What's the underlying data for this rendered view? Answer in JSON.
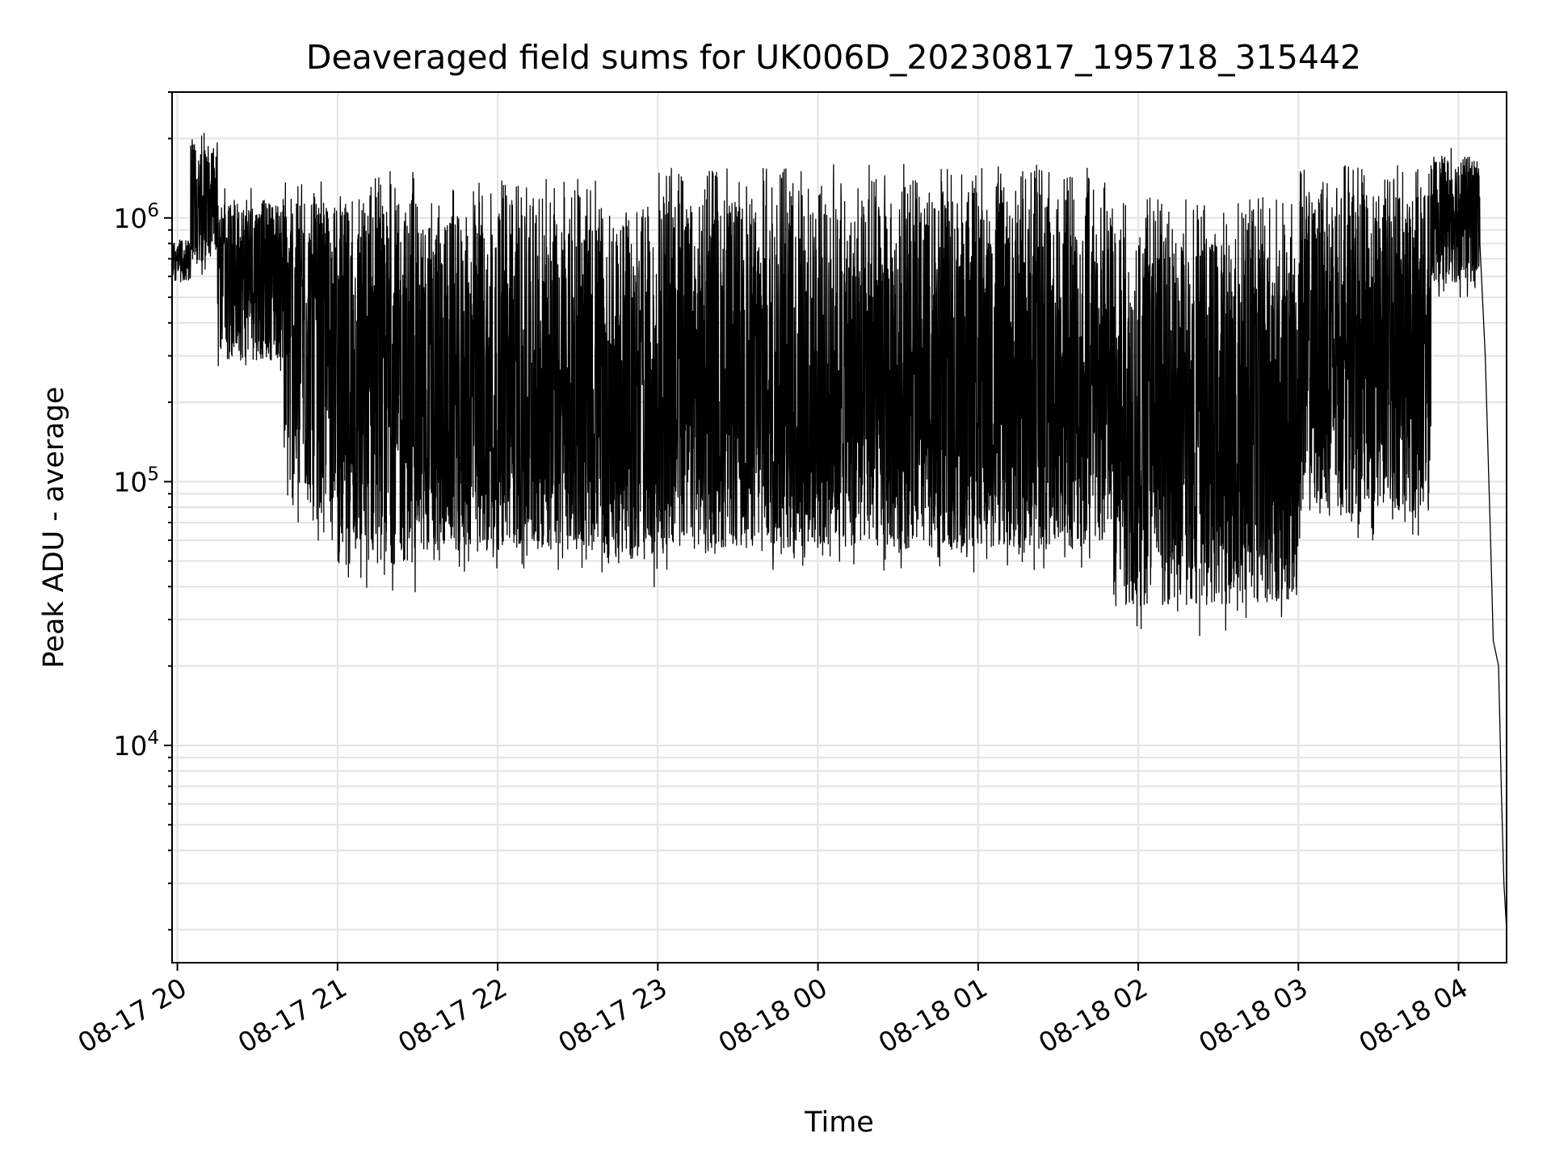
{
  "chart_data": {
    "type": "line",
    "title": "Deaveraged field sums for UK006D_20230817_195718_315442",
    "xlabel": "Time",
    "ylabel": "Peak ADU - average",
    "yscale": "log",
    "xlim": [
      "08-17 19:58",
      "08-18 04:18"
    ],
    "ylim": [
      1500,
      3000000
    ],
    "grid": true,
    "x_ticks": [
      "08-17 20",
      "08-17 21",
      "08-17 22",
      "08-17 23",
      "08-18 00",
      "08-18 01",
      "08-18 02",
      "08-18 03",
      "08-18 04"
    ],
    "y_ticks": [
      {
        "base": "10",
        "exp": "4",
        "value": 10000
      },
      {
        "base": "10",
        "exp": "5",
        "value": 100000
      },
      {
        "base": "10",
        "exp": "6",
        "value": 1000000
      }
    ],
    "series": [
      {
        "name": "",
        "color": "#000000",
        "envelope_segments": [
          {
            "start": "08-17 19:58",
            "end": "08-17 20:05",
            "low": 550000,
            "high": 850000,
            "typical": 700000
          },
          {
            "start": "08-17 20:05",
            "end": "08-17 20:15",
            "low": 600000,
            "high": 2100000,
            "typical": 1200000
          },
          {
            "start": "08-17 20:15",
            "end": "08-17 20:40",
            "low": 250000,
            "high": 1300000,
            "typical": 650000
          },
          {
            "start": "08-17 20:40",
            "end": "08-17 21:00",
            "low": 60000,
            "high": 1400000,
            "typical": 350000
          },
          {
            "start": "08-17 21:00",
            "end": "08-17 21:30",
            "low": 38000,
            "high": 1550000,
            "typical": 200000
          },
          {
            "start": "08-17 21:30",
            "end": "08-17 22:40",
            "low": 45000,
            "high": 1400000,
            "typical": 170000
          },
          {
            "start": "08-17 22:40",
            "end": "08-17 23:00",
            "low": 40000,
            "high": 1100000,
            "typical": 150000
          },
          {
            "start": "08-17 23:00",
            "end": "08-18 01:50",
            "low": 45000,
            "high": 1600000,
            "typical": 180000
          },
          {
            "start": "08-18 01:50",
            "end": "08-18 03:00",
            "low": 27000,
            "high": 1200000,
            "typical": 130000
          },
          {
            "start": "08-18 03:00",
            "end": "08-18 03:50",
            "low": 60000,
            "high": 1600000,
            "typical": 280000
          },
          {
            "start": "08-18 03:50",
            "end": "08-18 04:08",
            "low": 500000,
            "high": 1850000,
            "typical": 1100000
          }
        ],
        "tail": [
          {
            "x": "08-18 04:08",
            "y": 800000
          },
          {
            "x": "08-18 04:10",
            "y": 300000
          },
          {
            "x": "08-18 04:12",
            "y": 60000
          },
          {
            "x": "08-18 04:13",
            "y": 25000
          },
          {
            "x": "08-18 04:15",
            "y": 20000
          },
          {
            "x": "08-18 04:16",
            "y": 7000
          },
          {
            "x": "08-18 04:17",
            "y": 3000
          },
          {
            "x": "08-18 04:18",
            "y": 2000
          }
        ],
        "global_max": {
          "x": "08-17 20:10",
          "y": 2100000
        },
        "global_min_before_tail": {
          "x": "08-18 02:23",
          "y": 26000
        }
      }
    ]
  }
}
